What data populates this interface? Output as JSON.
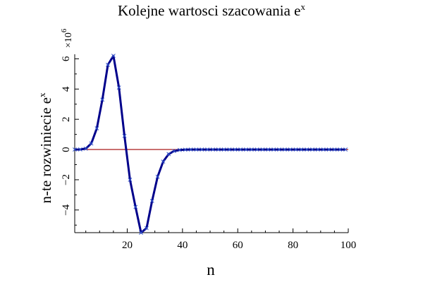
{
  "chart_data": {
    "type": "line",
    "title": "Kolejne wartosci szacowania e",
    "title_superscript": "x",
    "xlabel": "n",
    "ylabel": "n-te rozwiniecie e",
    "ylabel_superscript": "x",
    "y_scale_label": "×10",
    "y_scale_exponent": "6",
    "xlim": [
      1,
      100
    ],
    "ylim": [
      -5.5,
      6.3
    ],
    "x_ticks": [
      20,
      40,
      60,
      80,
      100
    ],
    "x_tick_labels": [
      "20",
      "40",
      "60",
      "80",
      "100"
    ],
    "y_ticks": [
      -4,
      -2,
      0,
      2,
      4,
      6
    ],
    "y_tick_labels": [
      "−4",
      "−2",
      "0",
      "2",
      "4",
      "6"
    ],
    "grid": false,
    "legend": "none",
    "series": [
      {
        "color": "#00008b",
        "marker": "x",
        "x": [
          1,
          3,
          5,
          7,
          9,
          11,
          13,
          15,
          17,
          19,
          21,
          23,
          25,
          27,
          29,
          31,
          33,
          35,
          37,
          39,
          41,
          43,
          45,
          47,
          49,
          51,
          53,
          55,
          57,
          59,
          61,
          63,
          65,
          67,
          69,
          71,
          73,
          75,
          77,
          79,
          81,
          83,
          85,
          87,
          89,
          91,
          93,
          95,
          97,
          99
        ],
        "y": [
          0.0,
          0.005,
          0.06,
          0.4,
          1.4,
          3.3,
          5.6,
          6.2,
          4.1,
          0.9,
          -2.0,
          -3.8,
          -5.5,
          -5.2,
          -3.4,
          -1.8,
          -0.8,
          -0.3,
          -0.1,
          -0.03,
          -0.01,
          0,
          0,
          0,
          0,
          0,
          0,
          0,
          0,
          0,
          0,
          0,
          0,
          0,
          0,
          0,
          0,
          0,
          0,
          0,
          0,
          0,
          0,
          0,
          0,
          0,
          0,
          0,
          0,
          0
        ]
      }
    ],
    "reference_line": {
      "y": 0,
      "color": "#a00000"
    }
  }
}
